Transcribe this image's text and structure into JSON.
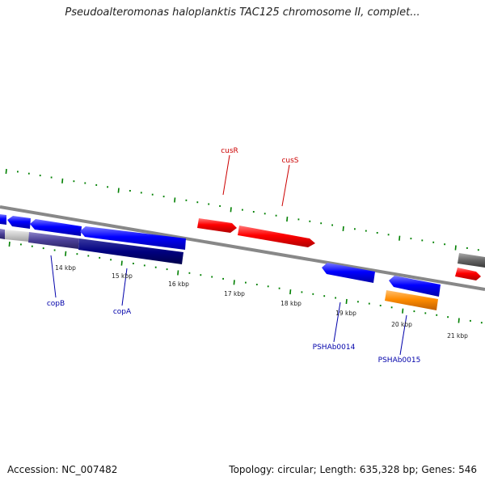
{
  "title": "Pseudoalteromonas haloplanktis TAC125 chromosome II, complet...",
  "footer": {
    "accession": "Accession: NC_007482",
    "topology": "Topology: circular; Length: 635,328 bp; Genes: 546"
  },
  "colors": {
    "forward_gene": "#ff0000",
    "reverse_gene": "#0000ff",
    "other_gene": "#ff8c00",
    "dark_feature": "#000080",
    "pseudo_gene": "#666666",
    "backbone": "#888888",
    "tick_mark": "#008000",
    "forward_label": "#cc0000",
    "reverse_label": "#0000aa"
  },
  "ruler": {
    "unit": "kbp",
    "labels": [
      "14 kbp",
      "15 kbp",
      "16 kbp",
      "17 kbp",
      "18 kbp",
      "19 kbp",
      "20 kbp",
      "21 kbp"
    ]
  },
  "genes": {
    "forward": [
      {
        "name": "cusR",
        "strand": "forward"
      },
      {
        "name": "cusS",
        "strand": "forward"
      }
    ],
    "reverse": [
      {
        "name": "copB",
        "strand": "reverse"
      },
      {
        "name": "copA",
        "strand": "reverse"
      },
      {
        "name": "PSHAb0014",
        "strand": "reverse"
      },
      {
        "name": "PSHAb0015",
        "strand": "reverse"
      }
    ]
  }
}
